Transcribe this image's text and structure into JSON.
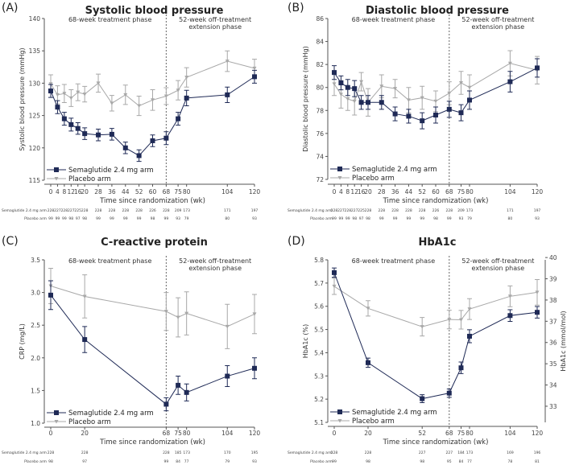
{
  "colors": {
    "semaglutide": "#1f2a56",
    "placebo": "#a8a8a8",
    "axis": "#555555"
  },
  "common": {
    "xlabel": "Time since randomization (wk)",
    "phase_treatment": "68-week treatment phase",
    "phase_extension_1": "52-week off-treatment",
    "phase_extension_2": "extension phase",
    "legend_semaglutide": "Semaglutide 2.4 mg arm",
    "legend_placebo": "Placebo arm",
    "risk_label_semaglutide": "Semaglutide 2.4 mg arm",
    "risk_label_placebo": "Placebo arm"
  },
  "chart_data": [
    {
      "type": "line",
      "panel_label": "(A)",
      "title": "Systolic blood pressure",
      "ylabel": "Systolic blood pressure (mmHg)",
      "xlabel": "Time since randomization (wk)",
      "ylim": [
        115,
        140
      ],
      "yticks": [
        115,
        120,
        125,
        130,
        135,
        140
      ],
      "x": [
        0,
        4,
        8,
        12,
        16,
        20,
        28,
        36,
        44,
        52,
        60,
        68,
        75,
        80,
        104,
        120
      ],
      "xlim": [
        0,
        120
      ],
      "series": [
        {
          "name": "Semaglutide 2.4 mg arm",
          "marker": "square",
          "values": [
            128.8,
            126.3,
            124.5,
            123.6,
            123.0,
            122.2,
            122.0,
            122.1,
            120.0,
            118.8,
            121.1,
            121.5,
            124.5,
            127.7,
            128.2,
            131.0
          ],
          "error": [
            1.0,
            1.0,
            1.0,
            1.0,
            0.9,
            0.9,
            0.9,
            0.9,
            0.9,
            0.9,
            0.9,
            1.0,
            1.0,
            1.2,
            1.2,
            1.0
          ],
          "n_at_risk": [
            228,
            227,
            228,
            227,
            225,
            228,
            228,
            228,
            228,
            228,
            226,
            228,
            209,
            173,
            171,
            197
          ]
        },
        {
          "name": "Placebo arm",
          "marker": "triangle-down",
          "values": [
            129.9,
            128.2,
            128.4,
            127.7,
            128.6,
            128.3,
            130.0,
            126.9,
            128.2,
            126.5,
            127.4,
            128.0,
            128.9,
            130.9,
            133.4,
            132.3
          ],
          "error": [
            1.4,
            1.4,
            1.4,
            1.3,
            1.3,
            1.2,
            1.4,
            1.2,
            1.5,
            1.5,
            1.6,
            1.3,
            1.5,
            1.5,
            1.6,
            1.4
          ],
          "n_at_risk": [
            99,
            99,
            99,
            98,
            97,
            98,
            99,
            99,
            99,
            99,
            98,
            99,
            93,
            79,
            80,
            93
          ]
        }
      ],
      "vline_x": 68
    },
    {
      "type": "line",
      "panel_label": "(B)",
      "title": "Diastolic blood pressure",
      "ylabel": "Diastolic blood pressure (mmHg)",
      "xlabel": "Time since randomization (wk)",
      "ylim": [
        72,
        86
      ],
      "yticks": [
        72,
        74,
        76,
        78,
        80,
        82,
        84,
        86
      ],
      "x": [
        0,
        4,
        8,
        12,
        16,
        20,
        28,
        36,
        44,
        52,
        60,
        68,
        75,
        80,
        104,
        120
      ],
      "xlim": [
        0,
        120
      ],
      "series": [
        {
          "name": "Semaglutide 2.4 mg arm",
          "marker": "square",
          "values": [
            81.3,
            80.4,
            80.0,
            79.9,
            78.7,
            78.7,
            78.7,
            77.7,
            77.5,
            77.1,
            77.6,
            78.1,
            77.8,
            78.9,
            80.5,
            81.7
          ],
          "error": [
            0.6,
            0.6,
            0.7,
            0.7,
            0.6,
            0.6,
            0.6,
            0.6,
            0.6,
            0.7,
            0.7,
            0.7,
            0.7,
            0.8,
            0.9,
            0.8
          ],
          "n_at_risk": [
            228,
            227,
            228,
            227,
            225,
            228,
            228,
            228,
            228,
            228,
            226,
            228,
            209,
            173,
            171,
            197
          ]
        },
        {
          "name": "Placebo arm",
          "marker": "triangle-down",
          "values": [
            80.3,
            79.4,
            79.0,
            78.8,
            80.5,
            78.7,
            80.1,
            79.9,
            78.9,
            79.1,
            78.8,
            79.5,
            80.4,
            80.0,
            82.1,
            81.5
          ],
          "error": [
            1.0,
            1.2,
            1.0,
            1.2,
            0.8,
            1.2,
            1.0,
            0.8,
            1.1,
            1.0,
            0.9,
            1.0,
            1.0,
            1.1,
            1.1,
            1.2
          ],
          "n_at_risk": [
            99,
            99,
            99,
            98,
            97,
            98,
            99,
            99,
            99,
            99,
            98,
            99,
            93,
            79,
            80,
            93
          ]
        }
      ],
      "vline_x": 68
    },
    {
      "type": "line",
      "panel_label": "(C)",
      "title": "C-reactive protein",
      "ylabel": "CRP (mg/L)",
      "xlabel": "Time since randomization (wk)",
      "ylim": [
        1.0,
        3.5
      ],
      "yticks": [
        "1.0",
        "1.5",
        "2.0",
        "2.5",
        "3.0",
        "3.5"
      ],
      "x": [
        0,
        20,
        68,
        75,
        80,
        104,
        120
      ],
      "xlim": [
        0,
        120
      ],
      "series": [
        {
          "name": "Semaglutide 2.4 mg arm",
          "marker": "square",
          "values": [
            2.96,
            2.28,
            1.29,
            1.58,
            1.47,
            1.72,
            1.84
          ],
          "error": [
            0.22,
            0.2,
            0.1,
            0.14,
            0.13,
            0.16,
            0.16
          ],
          "n_at_risk": [
            228,
            228,
            228,
            185,
            173,
            170,
            195
          ]
        },
        {
          "name": "Placebo arm",
          "marker": "triangle-down",
          "values": [
            3.1,
            2.94,
            2.71,
            2.62,
            2.68,
            2.48,
            2.67
          ],
          "error": [
            0.27,
            0.33,
            0.29,
            0.3,
            0.33,
            0.34,
            0.3
          ],
          "n_at_risk": [
            98,
            97,
            99,
            84,
            77,
            79,
            93
          ]
        }
      ],
      "vline_x": 68
    },
    {
      "type": "line",
      "panel_label": "(D)",
      "title": "HbA1c",
      "ylabel": "HbA1c (%)",
      "ylabel_right": "HbA1c (mmol/mol)",
      "xlabel": "Time since randomization (wk)",
      "ylim": [
        5.1,
        5.8
      ],
      "yticks": [
        "5.1",
        "5.2",
        "5.3",
        "5.4",
        "5.5",
        "5.6",
        "5.7",
        "5.8"
      ],
      "yticks_right": [
        33,
        34,
        35,
        36,
        37,
        38,
        39,
        40
      ],
      "x": [
        0,
        20,
        52,
        68,
        75,
        80,
        104,
        120
      ],
      "xlim": [
        0,
        120
      ],
      "series": [
        {
          "name": "Semaglutide 2.4 mg arm",
          "marker": "square",
          "values": [
            5.745,
            5.357,
            5.202,
            5.226,
            5.335,
            5.471,
            5.56,
            5.574
          ],
          "error": [
            0.02,
            0.02,
            0.017,
            0.018,
            0.025,
            0.028,
            0.025,
            0.025
          ],
          "n_at_risk": [
            228,
            228,
            227,
            227,
            184,
            173,
            169,
            196
          ]
        },
        {
          "name": "Placebo arm",
          "marker": "triangle-down",
          "values": [
            5.686,
            5.591,
            5.512,
            5.543,
            5.542,
            5.588,
            5.643,
            5.66
          ],
          "error": [
            0.035,
            0.033,
            0.04,
            0.04,
            0.04,
            0.045,
            0.045,
            0.055
          ],
          "n_at_risk": [
            99,
            98,
            98,
            95,
            84,
            77,
            78,
            81
          ]
        }
      ],
      "vline_x": 68
    }
  ]
}
